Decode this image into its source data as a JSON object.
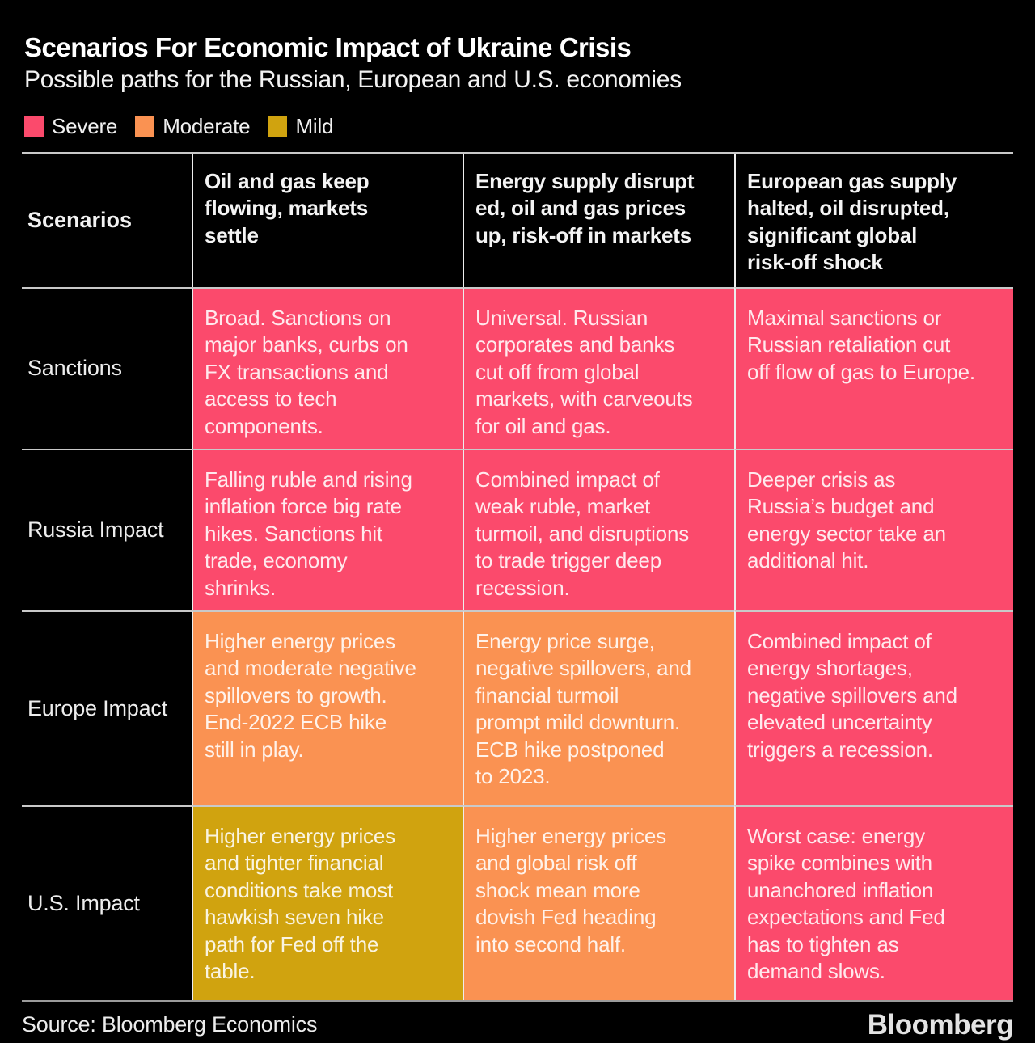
{
  "chart_data": {
    "type": "table",
    "title": "Scenarios For Economic Impact of Ukraine Crisis",
    "subtitle": "Possible paths for the Russian, European and U.S. economies",
    "legend": [
      {
        "label": "Severe",
        "color": "#fb4a6c",
        "severity": "severe"
      },
      {
        "label": "Moderate",
        "color": "#fa9252",
        "severity": "moderate"
      },
      {
        "label": "Mild",
        "color": "#d0a30f",
        "severity": "mild"
      }
    ],
    "corner_label": "Scenarios",
    "columns": [
      "Oil and gas keep\nflowing, markets\nsettle",
      "Energy supply disrupt\ned, oil and gas prices\nup, risk-off in markets",
      "European gas supply\nhalted, oil disrupted,\nsignificant global\nrisk-off shock"
    ],
    "rows": [
      {
        "label": "Sanctions",
        "cells": [
          {
            "text": "Broad. Sanctions on\nmajor banks, curbs on\nFX transactions and\naccess to tech\ncomponents.",
            "severity": "severe"
          },
          {
            "text": "Universal. Russian\ncorporates and banks\ncut off from global\nmarkets, with carveouts\nfor oil and gas.",
            "severity": "severe"
          },
          {
            "text": "Maximal sanctions or\nRussian retaliation cut\noff flow of gas to Europe.",
            "severity": "severe"
          }
        ]
      },
      {
        "label": "Russia Impact",
        "cells": [
          {
            "text": "Falling ruble and rising\ninflation force big rate\nhikes. Sanctions hit\ntrade, economy\nshrinks.",
            "severity": "severe"
          },
          {
            "text": "Combined impact of\nweak ruble, market\nturmoil, and disruptions\nto trade trigger deep\nrecession.",
            "severity": "severe"
          },
          {
            "text": "Deeper crisis as\nRussia’s budget and\nenergy sector take an\nadditional hit.",
            "severity": "severe"
          }
        ]
      },
      {
        "label": "Europe Impact",
        "cells": [
          {
            "text": "Higher energy prices\nand moderate negative\nspillovers to growth.\nEnd-2022 ECB hike\nstill in play.",
            "severity": "moderate"
          },
          {
            "text": "Energy price surge,\nnegative spillovers, and\nfinancial turmoil\nprompt mild downturn.\nECB hike postponed\nto 2023.",
            "severity": "moderate"
          },
          {
            "text": "Combined impact of\nenergy shortages,\nnegative spillovers and\nelevated uncertainty\ntriggers a recession.",
            "severity": "severe"
          }
        ]
      },
      {
        "label": "U.S. Impact",
        "cells": [
          {
            "text": "Higher energy prices\nand tighter financial\nconditions take most\nhawkish seven hike\npath for Fed off the\ntable.",
            "severity": "mild"
          },
          {
            "text": "Higher energy prices\nand global risk off\nshock mean more\ndovish Fed heading\ninto second half.",
            "severity": "moderate"
          },
          {
            "text": "Worst case: energy\nspike combines with\nunanchored inflation\nexpectations and Fed\nhas to tighten as\ndemand slows.",
            "severity": "severe"
          }
        ]
      }
    ],
    "layout": {
      "legend_position": "top-left",
      "grid": "on"
    }
  },
  "footer": {
    "source": "Source: Bloomberg Economics",
    "brand": "Bloomberg"
  },
  "colors": {
    "background": "#000000",
    "severe": "#fb4a6c",
    "moderate": "#fa9252",
    "mild": "#d0a30f",
    "gridline": "#cccccc",
    "title_text": "#ffffff",
    "cell_text": "#f6dfe2"
  }
}
